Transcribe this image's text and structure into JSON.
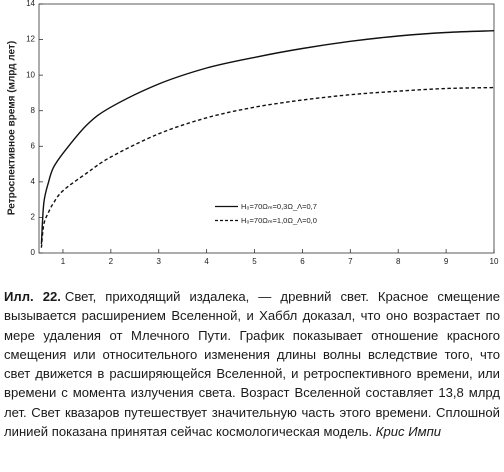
{
  "chart_data": {
    "type": "line",
    "title": "",
    "xlabel": "",
    "ylabel": "Ретроспективное время (млрд лет)",
    "xlim": [
      0.5,
      10
    ],
    "ylim": [
      0,
      14
    ],
    "x_ticks": [
      "1",
      "2",
      "3",
      "4",
      "5",
      "6",
      "7",
      "8",
      "9",
      "10"
    ],
    "y_ticks": [
      "0",
      "2",
      "4",
      "6",
      "8",
      "10",
      "12",
      "14"
    ],
    "grid": false,
    "legend_position": "center-right",
    "series": [
      {
        "name": "H₀=70Ωₘ=0,3Ω_Λ=0,7",
        "style": "solid",
        "x": [
          0.55,
          0.6,
          0.7,
          0.8,
          1,
          1.5,
          2,
          3,
          4,
          5,
          6,
          7,
          8,
          9,
          10
        ],
        "y": [
          0.5,
          2.8,
          4.0,
          4.8,
          5.6,
          7.2,
          8.2,
          9.5,
          10.4,
          11.0,
          11.5,
          11.9,
          12.2,
          12.4,
          12.5
        ]
      },
      {
        "name": "H₀=70Ωₘ=1,0Ω_Λ=0,0",
        "style": "dashed",
        "x": [
          0.55,
          0.6,
          0.7,
          0.8,
          1,
          1.5,
          2,
          3,
          4,
          5,
          6,
          7,
          8,
          9,
          10
        ],
        "y": [
          0.3,
          1.6,
          2.3,
          2.8,
          3.5,
          4.5,
          5.4,
          6.7,
          7.6,
          8.2,
          8.6,
          8.9,
          9.1,
          9.25,
          9.3
        ]
      }
    ]
  },
  "caption": {
    "label": "Илл. 22.",
    "text": "Свет, приходящий издалека, — древний свет. Красное смещение вызывается расширением Вселенной, и Хаббл доказал, что оно возрастает по мере удаления от Млечного Пути. График показывает отношение красного смещения или относительного изменения длины волны вследствие того, что свет движется в расширяющейся Вселенной, и ретроспективного времени, или времени с момента излучения света. Возраст Вселенной составляет 13,8 млрд лет. Свет квазаров путешествует значительную часть этого времени. Сплошной линией показана принятая сейчас космологическая модель.",
    "credit": "Крис Импи"
  }
}
